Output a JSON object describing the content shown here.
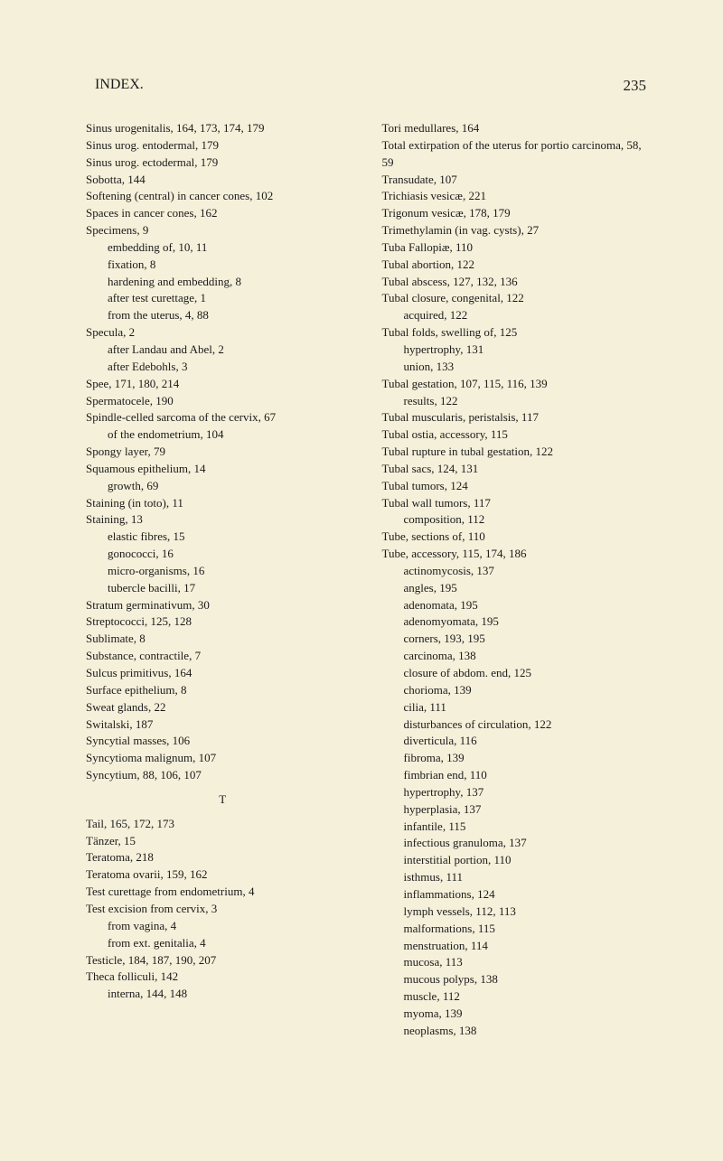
{
  "header": {
    "title": "INDEX.",
    "page_number": "235"
  },
  "left_column": [
    {
      "text": "Sinus urogenitalis, 164, 173, 174, 179",
      "indent": 0
    },
    {
      "text": "Sinus urog. entodermal, 179",
      "indent": 0
    },
    {
      "text": "Sinus urog. ectodermal, 179",
      "indent": 0
    },
    {
      "text": "Sobotta, 144",
      "indent": 0
    },
    {
      "text": "Softening (central) in cancer cones, 102",
      "indent": 0
    },
    {
      "text": "Spaces in cancer cones, 162",
      "indent": 0
    },
    {
      "text": "Specimens, 9",
      "indent": 0
    },
    {
      "text": "embedding of, 10, 11",
      "indent": 1
    },
    {
      "text": "fixation, 8",
      "indent": 1
    },
    {
      "text": "hardening and embedding, 8",
      "indent": 1
    },
    {
      "text": "after test curettage, 1",
      "indent": 1
    },
    {
      "text": "from the uterus, 4, 88",
      "indent": 1
    },
    {
      "text": "Specula, 2",
      "indent": 0
    },
    {
      "text": "after Landau and Abel, 2",
      "indent": 1
    },
    {
      "text": "after Edebohls, 3",
      "indent": 1
    },
    {
      "text": "Spee, 171, 180, 214",
      "indent": 0
    },
    {
      "text": "Spermatocele, 190",
      "indent": 0
    },
    {
      "text": "Spindle-celled sarcoma of the cervix, 67",
      "indent": 0
    },
    {
      "text": "of the endometrium, 104",
      "indent": 1
    },
    {
      "text": "Spongy layer, 79",
      "indent": 0
    },
    {
      "text": "Squamous epithelium, 14",
      "indent": 0
    },
    {
      "text": "growth, 69",
      "indent": 1
    },
    {
      "text": "Staining (in toto), 11",
      "indent": 0
    },
    {
      "text": "Staining, 13",
      "indent": 0
    },
    {
      "text": "elastic fibres, 15",
      "indent": 1
    },
    {
      "text": "gonococci, 16",
      "indent": 1
    },
    {
      "text": "micro-organisms, 16",
      "indent": 1
    },
    {
      "text": "tubercle bacilli, 17",
      "indent": 1
    },
    {
      "text": "Stratum germinativum, 30",
      "indent": 0
    },
    {
      "text": "Streptococci, 125, 128",
      "indent": 0
    },
    {
      "text": "Sublimate, 8",
      "indent": 0
    },
    {
      "text": "Substance, contractile, 7",
      "indent": 0
    },
    {
      "text": "Sulcus primitivus, 164",
      "indent": 0
    },
    {
      "text": "Surface epithelium, 8",
      "indent": 0
    },
    {
      "text": "Sweat glands, 22",
      "indent": 0
    },
    {
      "text": "Switalski, 187",
      "indent": 0
    },
    {
      "text": "Syncytial masses, 106",
      "indent": 0
    },
    {
      "text": "Syncytioma malignum, 107",
      "indent": 0
    },
    {
      "text": "Syncytium, 88, 106, 107",
      "indent": 0
    },
    {
      "text": "T",
      "indent": 0,
      "section": true
    },
    {
      "text": "Tail, 165, 172, 173",
      "indent": 0
    },
    {
      "text": "Tänzer, 15",
      "indent": 0
    },
    {
      "text": "Teratoma, 218",
      "indent": 0
    },
    {
      "text": "Teratoma ovarii, 159, 162",
      "indent": 0
    },
    {
      "text": "Test curettage from endometrium, 4",
      "indent": 0
    },
    {
      "text": "Test excision from cervix, 3",
      "indent": 0
    },
    {
      "text": "from vagina, 4",
      "indent": 1
    },
    {
      "text": "from ext. genitalia, 4",
      "indent": 1
    },
    {
      "text": "Testicle, 184, 187, 190, 207",
      "indent": 0
    },
    {
      "text": "Theca folliculi, 142",
      "indent": 0
    },
    {
      "text": "interna, 144, 148",
      "indent": 1
    }
  ],
  "right_column": [
    {
      "text": "Tori medullares, 164",
      "indent": 0
    },
    {
      "text": "Total extirpation of the uterus for portio carcinoma, 58, 59",
      "indent": 0
    },
    {
      "text": "Transudate, 107",
      "indent": 0
    },
    {
      "text": "Trichiasis vesicæ, 221",
      "indent": 0
    },
    {
      "text": "Trigonum vesicæ, 178, 179",
      "indent": 0
    },
    {
      "text": "Trimethylamin (in vag. cysts), 27",
      "indent": 0
    },
    {
      "text": "Tuba Fallopiæ, 110",
      "indent": 0
    },
    {
      "text": "Tubal abortion, 122",
      "indent": 0
    },
    {
      "text": "Tubal abscess, 127, 132, 136",
      "indent": 0
    },
    {
      "text": "Tubal closure, congenital, 122",
      "indent": 0
    },
    {
      "text": "acquired, 122",
      "indent": 1
    },
    {
      "text": "Tubal folds, swelling of, 125",
      "indent": 0
    },
    {
      "text": "hypertrophy, 131",
      "indent": 1
    },
    {
      "text": "union, 133",
      "indent": 1
    },
    {
      "text": "Tubal gestation, 107, 115, 116, 139",
      "indent": 0
    },
    {
      "text": "results, 122",
      "indent": 1
    },
    {
      "text": "Tubal muscularis, peristalsis, 117",
      "indent": 0
    },
    {
      "text": "Tubal ostia, accessory, 115",
      "indent": 0
    },
    {
      "text": "Tubal rupture in tubal gestation, 122",
      "indent": 0
    },
    {
      "text": "Tubal sacs, 124, 131",
      "indent": 0
    },
    {
      "text": "Tubal tumors, 124",
      "indent": 0
    },
    {
      "text": "Tubal wall tumors, 117",
      "indent": 0
    },
    {
      "text": "composition, 112",
      "indent": 1
    },
    {
      "text": "Tube, sections of, 110",
      "indent": 0
    },
    {
      "text": "Tube, accessory, 115, 174, 186",
      "indent": 0
    },
    {
      "text": "actinomycosis, 137",
      "indent": 1
    },
    {
      "text": "angles, 195",
      "indent": 1
    },
    {
      "text": "adenomata, 195",
      "indent": 1
    },
    {
      "text": "adenomyomata, 195",
      "indent": 1
    },
    {
      "text": "corners, 193, 195",
      "indent": 1
    },
    {
      "text": "carcinoma, 138",
      "indent": 1
    },
    {
      "text": "closure of abdom. end, 125",
      "indent": 1
    },
    {
      "text": "chorioma, 139",
      "indent": 1
    },
    {
      "text": "cilia, 111",
      "indent": 1
    },
    {
      "text": "disturbances of circulation, 122",
      "indent": 1
    },
    {
      "text": "diverticula, 116",
      "indent": 1
    },
    {
      "text": "fibroma, 139",
      "indent": 1
    },
    {
      "text": "fimbrian end, 110",
      "indent": 1
    },
    {
      "text": "hypertrophy, 137",
      "indent": 1
    },
    {
      "text": "hyperplasia, 137",
      "indent": 1
    },
    {
      "text": "infantile, 115",
      "indent": 1
    },
    {
      "text": "infectious granuloma, 137",
      "indent": 1
    },
    {
      "text": "interstitial portion, 110",
      "indent": 1
    },
    {
      "text": "isthmus, 111",
      "indent": 1
    },
    {
      "text": "inflammations, 124",
      "indent": 1
    },
    {
      "text": "lymph vessels, 112, 113",
      "indent": 1
    },
    {
      "text": "malformations, 115",
      "indent": 1
    },
    {
      "text": "menstruation, 114",
      "indent": 1
    },
    {
      "text": "mucosa, 113",
      "indent": 1
    },
    {
      "text": "mucous polyps, 138",
      "indent": 1
    },
    {
      "text": "muscle, 112",
      "indent": 1
    },
    {
      "text": "myoma, 139",
      "indent": 1
    },
    {
      "text": "neoplasms, 138",
      "indent": 1
    }
  ]
}
